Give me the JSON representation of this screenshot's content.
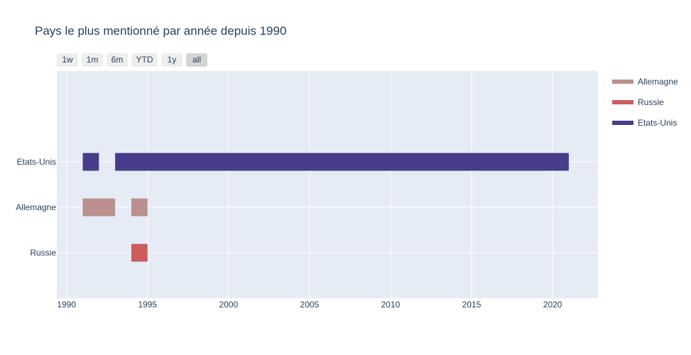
{
  "range_selector": {
    "buttons": [
      "1w",
      "1m",
      "6m",
      "YTD",
      "1y",
      "all"
    ],
    "active": "all"
  },
  "chart_data": {
    "type": "timeline",
    "title": "Pays le plus mentionné par année depuis 1990",
    "xlabel": "",
    "ylabel": "",
    "xlim": [
      1989.4,
      2022.8
    ],
    "x_ticks": [
      1990,
      1995,
      2000,
      2005,
      2010,
      2015,
      2020
    ],
    "categories": [
      "Etats-Unis",
      "Allemagne",
      "Russie"
    ],
    "grid": true,
    "legend_position": "right",
    "series": [
      {
        "name": "Allemagne",
        "color": "#bc8f8f",
        "segments": [
          {
            "start": 1991,
            "end": 1993
          },
          {
            "start": 1994,
            "end": 1995
          }
        ]
      },
      {
        "name": "Russie",
        "color": "#cd5c5c",
        "segments": [
          {
            "start": 1994,
            "end": 1995
          }
        ]
      },
      {
        "name": "Etats-Unis",
        "color": "#483d8b",
        "segments": [
          {
            "start": 1991,
            "end": 1992
          },
          {
            "start": 1993,
            "end": 2021
          }
        ]
      }
    ]
  }
}
